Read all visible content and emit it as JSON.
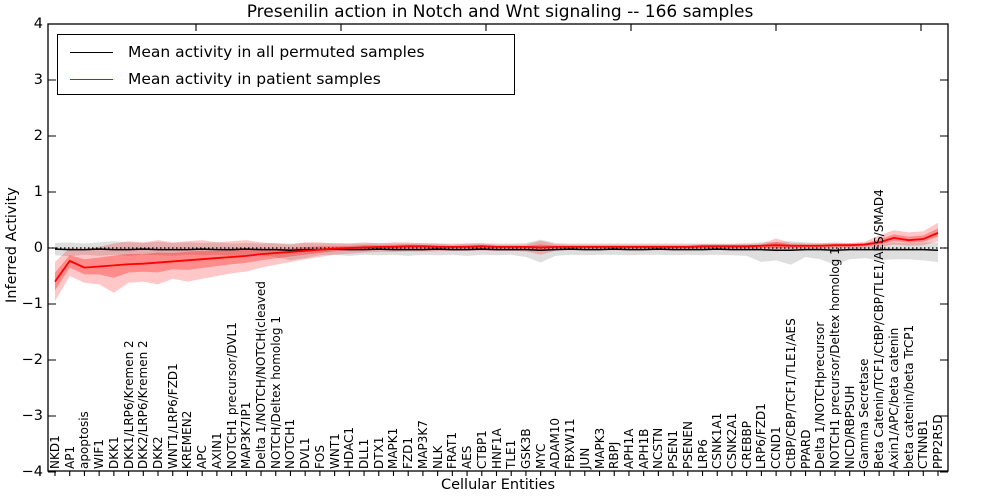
{
  "page": {
    "background": "#ffffff"
  },
  "legend": {
    "items": [
      {
        "label": "Mean activity in all permuted samples",
        "color": "#000000"
      },
      {
        "label": "Mean activity in patient samples",
        "color": "#ff0000"
      }
    ]
  },
  "axes": {
    "ylabel": "Inferred Activity",
    "xlabel": "Cellular Entities",
    "yticks": [
      "4",
      "3",
      "2",
      "1",
      "0",
      "−1",
      "−2",
      "−3",
      "−4"
    ],
    "ylim": [
      -4,
      4
    ]
  },
  "chart_data": {
    "type": "line",
    "title": "Presenilin action in Notch and Wnt signaling -- 166 samples",
    "xlabel": "Cellular Entities",
    "ylabel": "Inferred Activity",
    "ylim": [
      -4,
      4
    ],
    "grid": false,
    "legend_position": "upper left",
    "zero_reference_line": true,
    "categories": [
      "NKD1",
      "AP1",
      "apoptosis",
      "WIF1",
      "DKK1",
      "DKK1/LRP6/Kremen 2",
      "DKK2/LRP6/Kremen 2",
      "DKK2",
      "WNT1/LRP6/FZD1",
      "KREMEN2",
      "APC",
      "AXIN1",
      "NOTCH1 precursor/DVL1",
      "MAP3K7IP1",
      "Delta 1/NOTCH/NOTCH(cleaved",
      "NOTCH/Deltex homolog 1",
      "NOTCH1",
      "DVL1",
      "FOS",
      "WNT1",
      "HDAC1",
      "DLL1",
      "DTX1",
      "MAPK1",
      "FZD1",
      "MAP3K7",
      "NLK",
      "FRAT1",
      "AES",
      "CTBP1",
      "HNF1A",
      "TLE1",
      "GSK3B",
      "MYC",
      "ADAM10",
      "FBXW11",
      "JUN",
      "MAPK3",
      "RBPJ",
      "APH1A",
      "APH1B",
      "NCSTN",
      "PSEN1",
      "PSENEN",
      "LRP6",
      "CSNK1A1",
      "CSNK2A1",
      "CREBBP",
      "LRP6/FZD1",
      "CCND1",
      "CtBP/CBP/TCF1/TLE1/AES",
      "PPARD",
      "Delta 1/NOTCHprecursor",
      "NOTCH1 precursor/Deltex homolog 1",
      "NICD/RBPSUH",
      "Gamma Secretase",
      "Beta Catenin/TCF1/CtBP/CBP/TLE1/AES/SMAD4",
      "Axin1/APC/beta catenin",
      "beta catenin/beta TrCP1",
      "CTNNB1",
      "PPP2R5D"
    ],
    "series": [
      {
        "name": "Mean activity in all permuted samples",
        "color": "#000000",
        "band_color": "rgba(0,0,0,0.13)",
        "values": [
          -0.02,
          -0.03,
          -0.03,
          -0.02,
          -0.03,
          -0.03,
          -0.02,
          -0.03,
          -0.03,
          -0.03,
          -0.02,
          -0.03,
          -0.03,
          -0.02,
          -0.03,
          -0.03,
          -0.04,
          -0.03,
          -0.03,
          -0.02,
          -0.03,
          -0.03,
          -0.02,
          -0.03,
          -0.03,
          -0.03,
          -0.02,
          -0.03,
          -0.03,
          -0.02,
          -0.03,
          -0.03,
          -0.03,
          -0.04,
          -0.03,
          -0.02,
          -0.03,
          -0.03,
          -0.02,
          -0.03,
          -0.03,
          -0.02,
          -0.03,
          -0.03,
          -0.03,
          -0.02,
          -0.03,
          -0.03,
          -0.03,
          -0.04,
          -0.04,
          -0.03,
          -0.03,
          -0.04,
          -0.03,
          -0.03,
          -0.03,
          -0.03,
          -0.03,
          -0.03,
          -0.04
        ],
        "band_hi": [
          0.09,
          0.1,
          0.08,
          0.1,
          0.12,
          0.1,
          0.09,
          0.11,
          0.09,
          0.1,
          0.09,
          0.1,
          0.08,
          0.09,
          0.08,
          0.09,
          0.08,
          0.09,
          0.08,
          0.09,
          0.08,
          0.08,
          0.09,
          0.08,
          0.08,
          0.09,
          0.08,
          0.08,
          0.08,
          0.09,
          0.08,
          0.08,
          0.09,
          0.15,
          0.09,
          0.08,
          0.08,
          0.08,
          0.08,
          0.08,
          0.08,
          0.08,
          0.08,
          0.08,
          0.08,
          0.08,
          0.08,
          0.09,
          0.1,
          0.11,
          0.12,
          0.1,
          0.09,
          0.1,
          0.09,
          0.09,
          0.1,
          0.1,
          0.09,
          0.1,
          0.1
        ],
        "band_lo": [
          -0.13,
          -0.15,
          -0.12,
          -0.14,
          -0.12,
          -0.14,
          -0.12,
          -0.13,
          -0.14,
          -0.12,
          -0.13,
          -0.12,
          -0.14,
          -0.12,
          -0.13,
          -0.16,
          -0.22,
          -0.18,
          -0.13,
          -0.12,
          -0.14,
          -0.12,
          -0.13,
          -0.12,
          -0.14,
          -0.12,
          -0.13,
          -0.12,
          -0.14,
          -0.12,
          -0.13,
          -0.12,
          -0.16,
          -0.26,
          -0.14,
          -0.12,
          -0.13,
          -0.12,
          -0.12,
          -0.13,
          -0.12,
          -0.12,
          -0.13,
          -0.12,
          -0.13,
          -0.12,
          -0.13,
          -0.14,
          -0.25,
          -0.22,
          -0.3,
          -0.16,
          -0.2,
          -0.3,
          -0.2,
          -0.18,
          -0.22,
          -0.2,
          -0.2,
          -0.22,
          -0.25
        ]
      },
      {
        "name": "Mean activity in patient samples",
        "color": "#ff0000",
        "band_color": "rgba(255,0,0,0.22)",
        "inner_band_color": "rgba(255,0,0,0.30)",
        "values": [
          -0.6,
          -0.23,
          -0.35,
          -0.33,
          -0.31,
          -0.29,
          -0.28,
          -0.26,
          -0.24,
          -0.22,
          -0.2,
          -0.18,
          -0.16,
          -0.14,
          -0.11,
          -0.09,
          -0.07,
          -0.05,
          -0.03,
          -0.01,
          0.0,
          0.01,
          0.02,
          0.02,
          0.03,
          0.03,
          0.02,
          0.02,
          0.02,
          0.03,
          0.02,
          0.02,
          0.02,
          0.01,
          0.02,
          0.02,
          0.02,
          0.02,
          0.02,
          0.02,
          0.02,
          0.02,
          0.02,
          0.02,
          0.03,
          0.03,
          0.03,
          0.03,
          0.04,
          0.05,
          0.04,
          0.04,
          0.04,
          0.05,
          0.05,
          0.06,
          0.1,
          0.18,
          0.14,
          0.16,
          0.27
        ],
        "band_hi": [
          -0.25,
          0.0,
          -0.02,
          0.02,
          0.08,
          0.12,
          0.1,
          0.14,
          0.1,
          0.12,
          0.14,
          0.1,
          0.12,
          0.14,
          0.1,
          0.08,
          0.06,
          0.1,
          0.1,
          0.08,
          0.08,
          0.1,
          0.08,
          0.1,
          0.1,
          0.08,
          0.08,
          0.06,
          0.08,
          0.08,
          0.06,
          0.06,
          0.06,
          0.13,
          0.07,
          0.06,
          0.06,
          0.06,
          0.06,
          0.06,
          0.06,
          0.06,
          0.06,
          0.06,
          0.07,
          0.07,
          0.07,
          0.07,
          0.08,
          0.17,
          0.09,
          0.08,
          0.08,
          0.09,
          0.09,
          0.11,
          0.22,
          0.32,
          0.28,
          0.3,
          0.45
        ],
        "band_lo": [
          -0.95,
          -0.5,
          -0.62,
          -0.65,
          -0.8,
          -0.62,
          -0.6,
          -0.65,
          -0.55,
          -0.6,
          -0.55,
          -0.5,
          -0.45,
          -0.42,
          -0.35,
          -0.3,
          -0.25,
          -0.2,
          -0.16,
          -0.12,
          -0.1,
          -0.08,
          -0.07,
          -0.07,
          -0.06,
          -0.06,
          -0.06,
          -0.05,
          -0.05,
          -0.05,
          -0.05,
          -0.05,
          -0.06,
          -0.12,
          -0.05,
          -0.04,
          -0.04,
          -0.04,
          -0.04,
          -0.04,
          -0.04,
          -0.04,
          -0.04,
          -0.04,
          -0.04,
          -0.04,
          -0.04,
          -0.04,
          -0.03,
          -0.06,
          -0.03,
          -0.02,
          -0.02,
          -0.01,
          -0.01,
          0.0,
          0.02,
          0.06,
          0.04,
          0.05,
          0.12
        ]
      }
    ]
  }
}
